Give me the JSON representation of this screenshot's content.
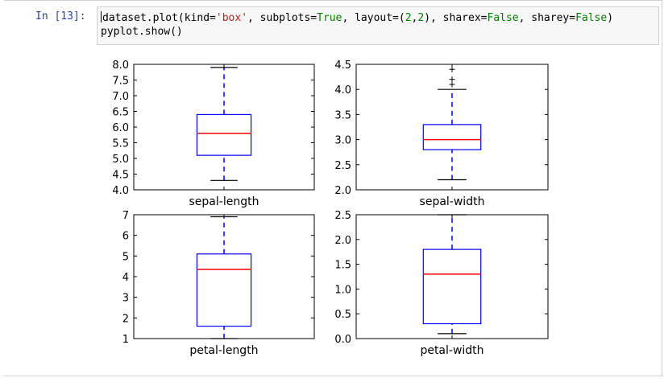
{
  "cell": {
    "prompt": "In [13]:",
    "line1": {
      "p1": "dataset.plot(kind=",
      "p2": "'box'",
      "p3": ", subplots=",
      "p4": "True",
      "p5": ", layout=(",
      "p6": "2",
      "p7": ",",
      "p8": "2",
      "p9": "), sharex=",
      "p10": "False",
      "p11": ", sharey=",
      "p12": "False",
      "p13": ")"
    },
    "line2": "pyplot.show()"
  },
  "colors": {
    "box": "#0000ff",
    "median": "#ff0000",
    "cell_bar": "#66bb6a"
  },
  "chart_data": [
    {
      "type": "box",
      "xlabel": "sepal-length",
      "ylim": [
        4.0,
        8.0
      ],
      "yticks": [
        "4.0",
        "4.5",
        "5.0",
        "5.5",
        "6.0",
        "6.5",
        "7.0",
        "7.5",
        "8.0"
      ],
      "whisker_low": 4.3,
      "q1": 5.1,
      "median": 5.8,
      "q3": 6.4,
      "whisker_high": 7.9,
      "fliers": []
    },
    {
      "type": "box",
      "xlabel": "sepal-width",
      "ylim": [
        2.0,
        4.5
      ],
      "yticks": [
        "2.0",
        "2.5",
        "3.0",
        "3.5",
        "4.0",
        "4.5"
      ],
      "whisker_low": 2.2,
      "q1": 2.8,
      "median": 3.0,
      "q3": 3.3,
      "whisker_high": 4.0,
      "fliers": [
        4.1,
        4.2,
        4.4
      ]
    },
    {
      "type": "box",
      "xlabel": "petal-length",
      "ylim": [
        1,
        7
      ],
      "yticks": [
        "1",
        "2",
        "3",
        "4",
        "5",
        "6",
        "7"
      ],
      "whisker_low": 1.0,
      "q1": 1.6,
      "median": 4.35,
      "q3": 5.1,
      "whisker_high": 6.9,
      "fliers": []
    },
    {
      "type": "box",
      "xlabel": "petal-width",
      "ylim": [
        0.0,
        2.5
      ],
      "yticks": [
        "0.0",
        "0.5",
        "1.0",
        "1.5",
        "2.0",
        "2.5"
      ],
      "whisker_low": 0.1,
      "q1": 0.3,
      "median": 1.3,
      "q3": 1.8,
      "whisker_high": 2.5,
      "fliers": []
    }
  ]
}
